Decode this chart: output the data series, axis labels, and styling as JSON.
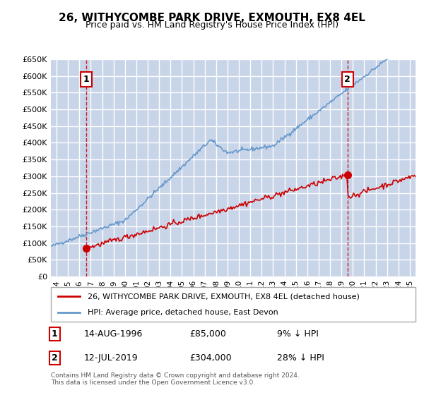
{
  "title": "26, WITHYCOMBE PARK DRIVE, EXMOUTH, EX8 4EL",
  "subtitle": "Price paid vs. HM Land Registry's House Price Index (HPI)",
  "ylim": [
    0,
    650000
  ],
  "yticks": [
    0,
    50000,
    100000,
    150000,
    200000,
    250000,
    300000,
    350000,
    400000,
    450000,
    500000,
    550000,
    600000,
    650000
  ],
  "ytick_labels": [
    "£0",
    "£50K",
    "£100K",
    "£150K",
    "£200K",
    "£250K",
    "£300K",
    "£350K",
    "£400K",
    "£450K",
    "£500K",
    "£550K",
    "£600K",
    "£650K"
  ],
  "bg_color": "#e8eef8",
  "hatch_color": "#c8d4e8",
  "grid_color": "white",
  "red_line_color": "#cc0000",
  "blue_line_color": "#6699cc",
  "marker1_date_x": 1996.62,
  "marker1_y": 85000,
  "marker2_date_x": 2019.53,
  "marker2_y": 304000,
  "dashed_line_color": "#cc0000",
  "legend_label_red": "26, WITHYCOMBE PARK DRIVE, EXMOUTH, EX8 4EL (detached house)",
  "legend_label_blue": "HPI: Average price, detached house, East Devon",
  "note1_label": "1",
  "note1_date": "14-AUG-1996",
  "note1_price": "£85,000",
  "note1_hpi": "9% ↓ HPI",
  "note2_label": "2",
  "note2_date": "12-JUL-2019",
  "note2_price": "£304,000",
  "note2_hpi": "28% ↓ HPI",
  "footer": "Contains HM Land Registry data © Crown copyright and database right 2024.\nThis data is licensed under the Open Government Licence v3.0.",
  "xmin": 1993.5,
  "xmax": 2025.5
}
